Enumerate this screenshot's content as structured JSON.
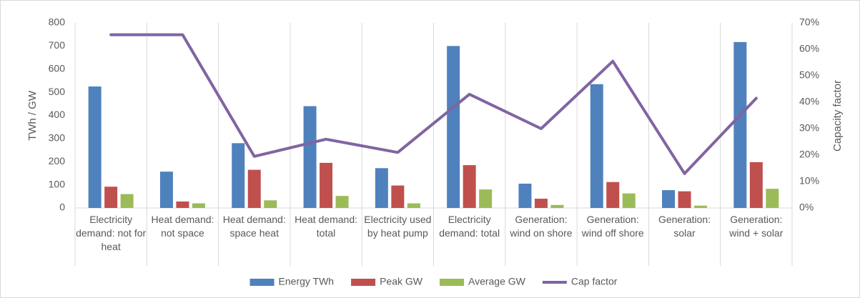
{
  "chart_data": {
    "type": "bar",
    "categories": [
      "Electricity demand: not for heat",
      "Heat demand: not space",
      "Heat demand: space heat",
      "Heat demand: total",
      "Electricity used by heat pump",
      "Electricity demand: total",
      "Generation: wind on shore",
      "Generation: wind off shore",
      "Generation: solar",
      "Generation: wind + solar"
    ],
    "ylabel": "TWh / GW",
    "y2label": "Capacity factor",
    "ylim": [
      0,
      800
    ],
    "yticks": [
      0,
      100,
      200,
      300,
      400,
      500,
      600,
      700,
      800
    ],
    "y2lim": [
      0,
      70
    ],
    "y2ticks": [
      {
        "value": 0,
        "label": "0%"
      },
      {
        "value": 10,
        "label": "10%"
      },
      {
        "value": 20,
        "label": "20%"
      },
      {
        "value": 30,
        "label": "30%"
      },
      {
        "value": 40,
        "label": "40%"
      },
      {
        "value": 50,
        "label": "50%"
      },
      {
        "value": 60,
        "label": "60%"
      },
      {
        "value": 70,
        "label": "70%"
      }
    ],
    "series": [
      {
        "name": "Energy TWh",
        "type": "bar",
        "color": "#4f81bd",
        "values": [
          525,
          157,
          280,
          440,
          172,
          700,
          105,
          535,
          77,
          717
        ]
      },
      {
        "name": "Peak GW",
        "type": "bar",
        "color": "#c0504d",
        "values": [
          92,
          28,
          165,
          195,
          97,
          185,
          40,
          112,
          72,
          198
        ]
      },
      {
        "name": "Average GW",
        "type": "bar",
        "color": "#9bbb59",
        "values": [
          60,
          20,
          33,
          52,
          20,
          80,
          13,
          63,
          10,
          83
        ]
      },
      {
        "name": "Cap factor",
        "type": "line",
        "axis": "y2",
        "color": "#8064a2",
        "values": [
          65.5,
          65.5,
          19.5,
          26,
          21,
          43,
          30,
          55.5,
          13,
          41.5
        ]
      }
    ],
    "legend": "bottom"
  }
}
